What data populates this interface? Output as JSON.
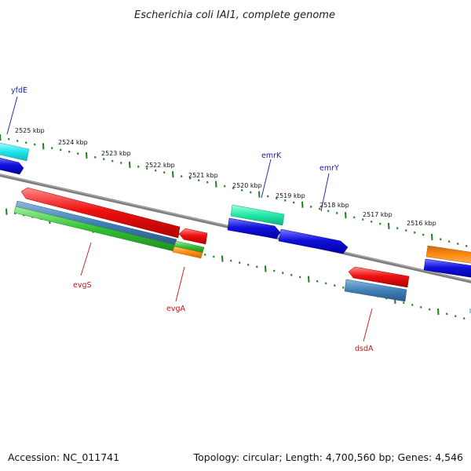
{
  "title": "Escherichia coli IAI1, complete genome",
  "footer": {
    "accession": "Accession: NC_011741",
    "summary": "Topology: circular; Length: 4,700,560 bp; Genes: 4,546"
  },
  "ticks": [
    "2525 kbp",
    "2524 kbp",
    "2523 kbp",
    "2522 kbp",
    "2521 kbp",
    "2520 kbp",
    "2519 kbp",
    "2518 kbp",
    "2517 kbp",
    "2516 kbp"
  ],
  "genes": {
    "yfdE": "yfdE",
    "emrK": "emrK",
    "emrY": "emrY",
    "evgS": "evgS",
    "evgA": "evgA",
    "dsdA": "dsdA"
  },
  "colors": {
    "backbone": "#808080",
    "ticks": "#1e7d1e",
    "red": "#ee1111",
    "blue": "#1111dd",
    "cyan": "#22e5ee",
    "teal": "#22e8a8",
    "steel": "#3f7fb5",
    "green": "#33c033",
    "orange": "#ff8c11",
    "fwd_label": "#1a1aa8",
    "rev_label": "#cc1111"
  }
}
